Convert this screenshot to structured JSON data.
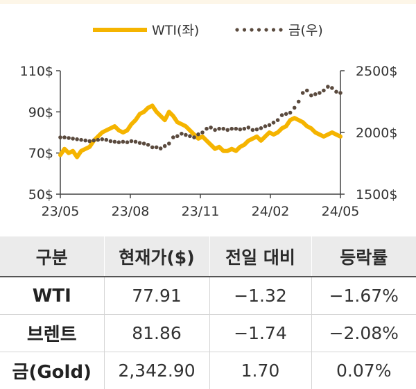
{
  "chart_data": {
    "type": "line",
    "legend": {
      "position": "top-center"
    },
    "x_ticks": [
      "23/05",
      "23/08",
      "23/11",
      "24/02",
      "24/05"
    ],
    "left_axis": {
      "ticks": [
        "110$",
        "90$",
        "70$",
        "50$"
      ],
      "range": [
        50,
        110
      ]
    },
    "right_axis": {
      "ticks": [
        "2500$",
        "2000$",
        "1500$"
      ],
      "range": [
        1500,
        2500
      ]
    },
    "series": [
      {
        "name": "WTI(좌)",
        "axis": "left",
        "color": "#f5b400",
        "style": "solid",
        "values": [
          69,
          72,
          70,
          71,
          68,
          71,
          72,
          73,
          76,
          78,
          80,
          81,
          82,
          83,
          81,
          80,
          81,
          84,
          86,
          89,
          90,
          92,
          93,
          90,
          88,
          86,
          90,
          88,
          85,
          84,
          83,
          81,
          79,
          77,
          78,
          76,
          74,
          72,
          73,
          71,
          71,
          72,
          71,
          73,
          74,
          76,
          77,
          78,
          76,
          78,
          80,
          79,
          80,
          82,
          83,
          86,
          87,
          86,
          85,
          83,
          82,
          80,
          79,
          78,
          79,
          80,
          79,
          78
        ]
      },
      {
        "name": "금(우)",
        "axis": "right",
        "color": "#5a4a3e",
        "style": "dotted",
        "values": [
          1960,
          1960,
          1955,
          1950,
          1945,
          1940,
          1935,
          1930,
          1935,
          1940,
          1945,
          1940,
          1930,
          1925,
          1920,
          1925,
          1920,
          1930,
          1925,
          1915,
          1910,
          1900,
          1880,
          1880,
          1870,
          1890,
          1910,
          1960,
          1970,
          1990,
          1980,
          1970,
          1960,
          1985,
          2000,
          2030,
          2040,
          2020,
          2030,
          2030,
          2020,
          2030,
          2030,
          2025,
          2030,
          2040,
          2020,
          2025,
          2035,
          2050,
          2060,
          2080,
          2100,
          2140,
          2150,
          2160,
          2200,
          2250,
          2320,
          2340,
          2300,
          2310,
          2320,
          2340,
          2370,
          2360,
          2330,
          2320
        ]
      }
    ]
  },
  "table": {
    "headers": [
      "구분",
      "현재가($)",
      "전일 대비",
      "등락률"
    ],
    "rows": [
      [
        "WTI",
        "77.91",
        "−1.32",
        "−1.67%"
      ],
      [
        "브렌트",
        "81.86",
        "−1.74",
        "−2.08%"
      ],
      [
        "금(Gold)",
        "2,342.90",
        "1.70",
        "0.07%"
      ]
    ]
  }
}
